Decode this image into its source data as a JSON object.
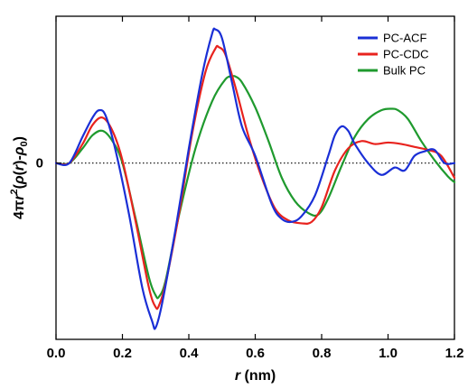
{
  "chart_data": {
    "type": "line",
    "title": "",
    "xlabel": "r (nm)",
    "xlabel_parts": {
      "var": "r",
      "unit": " (nm)"
    },
    "ylabel": "4πr²(ρ(r)-ρ₀)",
    "xlim": [
      0.0,
      1.2
    ],
    "ylim": [
      -1.2,
      1.0
    ],
    "xticks": [
      0.0,
      0.2,
      0.4,
      0.6,
      0.8,
      1.0,
      1.2
    ],
    "xtick_labels": [
      "0.0",
      "0.2",
      "0.4",
      "0.6",
      "0.8",
      "1.0",
      "1.2"
    ],
    "yticks": [
      0
    ],
    "ytick_labels": [
      "0"
    ],
    "zero_line": "dotted",
    "grid": false,
    "legend_position": "top-right",
    "series": [
      {
        "name": "PC-ACF",
        "color": "#1a2fd6",
        "x": [
          0.0,
          0.04,
          0.08,
          0.11,
          0.13,
          0.15,
          0.18,
          0.22,
          0.26,
          0.29,
          0.3,
          0.32,
          0.36,
          0.4,
          0.44,
          0.47,
          0.48,
          0.5,
          0.53,
          0.56,
          0.6,
          0.65,
          0.68,
          0.71,
          0.74,
          0.78,
          0.82,
          0.84,
          0.86,
          0.88,
          0.9,
          0.94,
          0.98,
          1.02,
          1.05,
          1.08,
          1.11,
          1.14,
          1.17,
          1.2
        ],
        "y": [
          0.0,
          0.0,
          0.18,
          0.31,
          0.36,
          0.32,
          0.08,
          -0.35,
          -0.85,
          -1.08,
          -1.12,
          -0.95,
          -0.45,
          0.1,
          0.6,
          0.88,
          0.91,
          0.85,
          0.55,
          0.25,
          0.05,
          -0.28,
          -0.38,
          -0.4,
          -0.36,
          -0.22,
          0.05,
          0.19,
          0.25,
          0.22,
          0.13,
          0.0,
          -0.08,
          -0.03,
          -0.05,
          0.05,
          0.08,
          0.09,
          0.0,
          0.0
        ]
      },
      {
        "name": "PC-CDC",
        "color": "#e8231e",
        "x": [
          0.0,
          0.04,
          0.08,
          0.11,
          0.14,
          0.17,
          0.2,
          0.24,
          0.28,
          0.3,
          0.31,
          0.33,
          0.37,
          0.41,
          0.45,
          0.48,
          0.49,
          0.51,
          0.54,
          0.58,
          0.62,
          0.66,
          0.7,
          0.74,
          0.77,
          0.8,
          0.84,
          0.88,
          0.92,
          0.96,
          1.0,
          1.04,
          1.08,
          1.12,
          1.16,
          1.2
        ],
        "y": [
          0.0,
          0.0,
          0.13,
          0.26,
          0.31,
          0.22,
          0.02,
          -0.4,
          -0.85,
          -0.98,
          -0.97,
          -0.82,
          -0.35,
          0.2,
          0.62,
          0.78,
          0.79,
          0.74,
          0.52,
          0.18,
          -0.1,
          -0.31,
          -0.39,
          -0.41,
          -0.4,
          -0.3,
          -0.05,
          0.1,
          0.15,
          0.13,
          0.14,
          0.13,
          0.11,
          0.09,
          0.05,
          -0.1
        ]
      },
      {
        "name": "Bulk PC",
        "color": "#1f9a2e",
        "x": [
          0.0,
          0.04,
          0.08,
          0.11,
          0.14,
          0.17,
          0.2,
          0.24,
          0.28,
          0.3,
          0.31,
          0.33,
          0.37,
          0.42,
          0.47,
          0.51,
          0.53,
          0.54,
          0.56,
          0.6,
          0.64,
          0.68,
          0.72,
          0.76,
          0.79,
          0.82,
          0.86,
          0.9,
          0.94,
          0.98,
          1.01,
          1.03,
          1.06,
          1.1,
          1.14,
          1.18,
          1.2
        ],
        "y": [
          0.0,
          0.0,
          0.1,
          0.19,
          0.22,
          0.15,
          0.0,
          -0.38,
          -0.78,
          -0.9,
          -0.91,
          -0.8,
          -0.36,
          0.1,
          0.42,
          0.57,
          0.59,
          0.59,
          0.55,
          0.38,
          0.15,
          -0.1,
          -0.26,
          -0.34,
          -0.35,
          -0.24,
          -0.02,
          0.18,
          0.3,
          0.36,
          0.37,
          0.36,
          0.3,
          0.15,
          0.02,
          -0.09,
          -0.13
        ]
      }
    ]
  }
}
